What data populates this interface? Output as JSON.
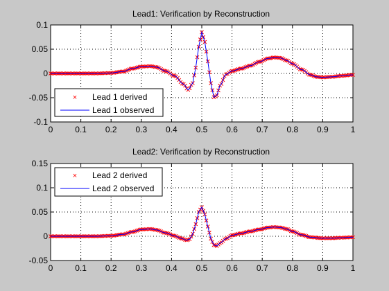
{
  "chart_data": [
    {
      "type": "line",
      "title": "Lead1: Verification by Reconstruction",
      "xlim": [
        0,
        1
      ],
      "ylim": [
        -0.1,
        0.1
      ],
      "xticks": [
        "0",
        "0.1",
        "0.2",
        "0.3",
        "0.4",
        "0.5",
        "0.6",
        "0.7",
        "0.8",
        "0.9",
        "1"
      ],
      "yticks": [
        "0.1",
        "0.05",
        "0",
        "-0.05",
        "-0.1"
      ],
      "grid": true,
      "legend": "bottom-left",
      "x": [
        0,
        0.05,
        0.1,
        0.15,
        0.2,
        0.24,
        0.27,
        0.3,
        0.33,
        0.35,
        0.38,
        0.41,
        0.44,
        0.455,
        0.47,
        0.48,
        0.49,
        0.5,
        0.51,
        0.52,
        0.53,
        0.54,
        0.55,
        0.56,
        0.58,
        0.6,
        0.63,
        0.66,
        0.69,
        0.72,
        0.74,
        0.76,
        0.78,
        0.8,
        0.83,
        0.86,
        0.88,
        0.9,
        0.93,
        0.96,
        1.0
      ],
      "series": [
        {
          "name": "Lead 1 derived",
          "marker": "x",
          "color": "#ff0000",
          "values": [
            0,
            0,
            0,
            0,
            0.001,
            0.004,
            0.01,
            0.014,
            0.015,
            0.013,
            0.005,
            -0.005,
            -0.022,
            -0.034,
            -0.02,
            0.012,
            0.055,
            0.085,
            0.065,
            0.025,
            -0.02,
            -0.049,
            -0.045,
            -0.025,
            -0.002,
            0.005,
            0.01,
            0.016,
            0.024,
            0.031,
            0.033,
            0.032,
            0.027,
            0.02,
            0.008,
            -0.003,
            -0.007,
            -0.008,
            -0.007,
            -0.005,
            -0.003
          ]
        },
        {
          "name": "Lead 1 observed",
          "marker": "line",
          "color": "#0000ff",
          "values": [
            0,
            0,
            0,
            0,
            0.001,
            0.004,
            0.01,
            0.014,
            0.015,
            0.013,
            0.005,
            -0.005,
            -0.022,
            -0.034,
            -0.02,
            0.012,
            0.055,
            0.085,
            0.065,
            0.025,
            -0.02,
            -0.049,
            -0.045,
            -0.025,
            -0.002,
            0.005,
            0.01,
            0.016,
            0.024,
            0.031,
            0.033,
            0.032,
            0.027,
            0.02,
            0.008,
            -0.003,
            -0.007,
            -0.008,
            -0.007,
            -0.005,
            -0.003
          ]
        }
      ]
    },
    {
      "type": "line",
      "title": "Lead2: Verification by Reconstruction",
      "xlim": [
        0,
        1
      ],
      "ylim": [
        -0.05,
        0.15
      ],
      "xticks": [
        "0",
        "0.1",
        "0.2",
        "0.3",
        "0.4",
        "0.5",
        "0.6",
        "0.7",
        "0.8",
        "0.9",
        "1"
      ],
      "yticks": [
        "0.15",
        "0.1",
        "0.05",
        "0",
        "-0.05"
      ],
      "grid": true,
      "legend": "top-left",
      "x": [
        0,
        0.05,
        0.1,
        0.15,
        0.2,
        0.24,
        0.27,
        0.3,
        0.33,
        0.35,
        0.38,
        0.41,
        0.43,
        0.45,
        0.46,
        0.47,
        0.48,
        0.49,
        0.5,
        0.51,
        0.52,
        0.53,
        0.54,
        0.55,
        0.56,
        0.58,
        0.6,
        0.63,
        0.66,
        0.69,
        0.72,
        0.74,
        0.76,
        0.78,
        0.8,
        0.83,
        0.86,
        0.9,
        0.93,
        0.96,
        1.0
      ],
      "series": [
        {
          "name": "Lead 2 derived",
          "marker": "x",
          "color": "#ff0000",
          "values": [
            0,
            0,
            0,
            0,
            0.001,
            0.004,
            0.009,
            0.014,
            0.015,
            0.013,
            0.007,
            0.001,
            -0.004,
            -0.008,
            -0.006,
            0.005,
            0.025,
            0.05,
            0.06,
            0.045,
            0.02,
            -0.005,
            -0.018,
            -0.02,
            -0.014,
            -0.005,
            0.002,
            0.006,
            0.01,
            0.014,
            0.018,
            0.019,
            0.018,
            0.015,
            0.01,
            0.003,
            -0.002,
            -0.004,
            -0.004,
            -0.003,
            -0.002
          ]
        },
        {
          "name": "Lead 2 observed",
          "marker": "line",
          "color": "#0000ff",
          "values": [
            0,
            0,
            0,
            0,
            0.001,
            0.004,
            0.009,
            0.014,
            0.015,
            0.013,
            0.007,
            0.001,
            -0.004,
            -0.008,
            -0.006,
            0.005,
            0.025,
            0.05,
            0.06,
            0.045,
            0.02,
            -0.005,
            -0.018,
            -0.02,
            -0.014,
            -0.005,
            0.002,
            0.006,
            0.01,
            0.014,
            0.018,
            0.019,
            0.018,
            0.015,
            0.01,
            0.003,
            -0.002,
            -0.004,
            -0.004,
            -0.003,
            -0.002
          ]
        }
      ]
    }
  ]
}
